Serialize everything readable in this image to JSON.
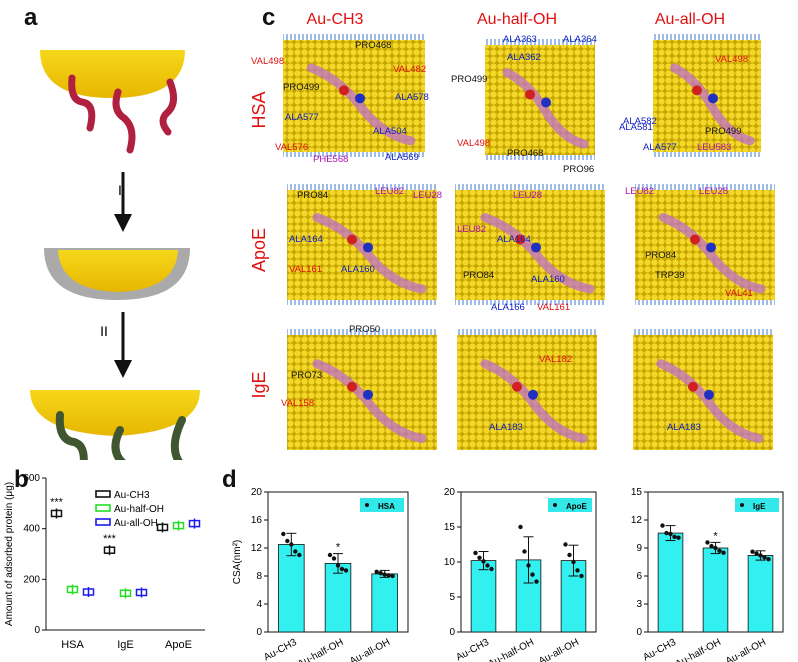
{
  "panels": {
    "a": "a",
    "b": "b",
    "c": "c",
    "d": "d"
  },
  "panel_a": {
    "step1": "I",
    "step2": "II"
  },
  "panel_c": {
    "columns": [
      "Au-CH3",
      "Au-half-OH",
      "Au-all-OH"
    ],
    "rows": [
      "HSA",
      "ApoE",
      "IgE"
    ],
    "residue_labels": [
      {
        "t": "VAL498",
        "c": "red"
      },
      {
        "t": "PRO499",
        "c": "black"
      },
      {
        "t": "PRO468",
        "c": "black"
      },
      {
        "t": "VAL482",
        "c": "red"
      },
      {
        "t": "ALA578",
        "c": "blue"
      },
      {
        "t": "ALA577",
        "c": "blue"
      },
      {
        "t": "ALA504",
        "c": "blue"
      },
      {
        "t": "VAL576",
        "c": "red"
      },
      {
        "t": "PHE568",
        "c": "purple"
      },
      {
        "t": "ALA569",
        "c": "blue"
      },
      {
        "t": "ALA363",
        "c": "blue"
      },
      {
        "t": "ALA364",
        "c": "blue"
      },
      {
        "t": "ALA362",
        "c": "blue"
      },
      {
        "t": "PRO499",
        "c": "black"
      },
      {
        "t": "VAL498",
        "c": "red"
      },
      {
        "t": "PRO468",
        "c": "black"
      },
      {
        "t": "PRO96",
        "c": "black"
      },
      {
        "t": "VAL498",
        "c": "red"
      },
      {
        "t": "ALA582",
        "c": "blue"
      },
      {
        "t": "ALA581",
        "c": "blue"
      },
      {
        "t": "ALA577",
        "c": "blue"
      },
      {
        "t": "PRO499",
        "c": "black"
      },
      {
        "t": "LEU583",
        "c": "purple"
      },
      {
        "t": "PRO84",
        "c": "black"
      },
      {
        "t": "LEU82",
        "c": "purple"
      },
      {
        "t": "LEU28",
        "c": "purple"
      },
      {
        "t": "ALA164",
        "c": "blue"
      },
      {
        "t": "VAL161",
        "c": "red"
      },
      {
        "t": "ALA160",
        "c": "blue"
      },
      {
        "t": "LEU28",
        "c": "purple"
      },
      {
        "t": "LEU82",
        "c": "purple"
      },
      {
        "t": "ALA164",
        "c": "blue"
      },
      {
        "t": "PRO84",
        "c": "black"
      },
      {
        "t": "ALA160",
        "c": "blue"
      },
      {
        "t": "ALA166",
        "c": "blue"
      },
      {
        "t": "VAL161",
        "c": "red"
      },
      {
        "t": "LEU82",
        "c": "purple"
      },
      {
        "t": "LEU28",
        "c": "purple"
      },
      {
        "t": "PRO84",
        "c": "black"
      },
      {
        "t": "TRP39",
        "c": "black"
      },
      {
        "t": "VAL41",
        "c": "red"
      },
      {
        "t": "PRO50",
        "c": "black"
      },
      {
        "t": "PRO73",
        "c": "black"
      },
      {
        "t": "VAL158",
        "c": "red"
      },
      {
        "t": "VAL182",
        "c": "red"
      },
      {
        "t": "ALA183",
        "c": "blue"
      },
      {
        "t": "ALA183",
        "c": "blue"
      }
    ]
  },
  "chart_data": [
    {
      "type": "scatter",
      "title": "",
      "xlabel": "",
      "ylabel": "Amount of adsorbed protein (μg)",
      "categories": [
        "HSA",
        "IgE",
        "ApoE"
      ],
      "ylim": [
        0,
        600
      ],
      "yticks": [
        0,
        200,
        400,
        600
      ],
      "legend": "top-right",
      "series": [
        {
          "name": "Au-CH3",
          "color": "#111111",
          "values": [
            460,
            315,
            405
          ]
        },
        {
          "name": "Au-half-OH",
          "color": "#22dd22",
          "values": [
            160,
            145,
            412
          ]
        },
        {
          "name": "Au-all-OH",
          "color": "#1a1aee",
          "values": [
            150,
            148,
            420
          ]
        }
      ],
      "significance": [
        {
          "category": "HSA",
          "label": "***"
        },
        {
          "category": "IgE",
          "label": "***"
        }
      ]
    },
    {
      "type": "bar",
      "legend_label": "HSA",
      "ylabel": "CSA(nm²)",
      "categories": [
        "Au-CH3",
        "Au-half-OH",
        "Au-all-OH"
      ],
      "values": [
        12.5,
        9.8,
        8.3
      ],
      "errors": [
        1.6,
        1.4,
        0.5
      ],
      "ylim": [
        0,
        20
      ],
      "yticks": [
        0,
        4,
        8,
        12,
        16,
        20
      ],
      "points": [
        [
          14,
          13,
          12.5,
          11.5,
          11
        ],
        [
          11,
          10.5,
          9.5,
          9,
          8.8
        ],
        [
          8.6,
          8.4,
          8.2,
          8.1,
          8.0
        ]
      ],
      "significance": [
        {
          "category": "Au-half-OH",
          "label": "*"
        }
      ]
    },
    {
      "type": "bar",
      "legend_label": "ApoE",
      "categories": [
        "Au-CH3",
        "Au-half-OH",
        "Au-all-OH"
      ],
      "values": [
        10.2,
        10.3,
        10.2
      ],
      "errors": [
        1.3,
        3.3,
        2.2
      ],
      "ylim": [
        0,
        20
      ],
      "yticks": [
        0,
        5,
        10,
        15,
        20
      ],
      "points": [
        [
          11.3,
          10.6,
          10.1,
          9.5,
          9.0
        ],
        [
          15,
          11.5,
          9.5,
          8.2,
          7.2
        ],
        [
          12.5,
          11,
          10,
          8.8,
          8.0
        ]
      ],
      "significance": []
    },
    {
      "type": "bar",
      "legend_label": "IgE",
      "categories": [
        "Au-CH3",
        "Au-half-OH",
        "Au-all-OH"
      ],
      "values": [
        10.6,
        9.0,
        8.2
      ],
      "errors": [
        0.8,
        0.6,
        0.5
      ],
      "ylim": [
        0,
        15
      ],
      "yticks": [
        0,
        3,
        6,
        9,
        12,
        15
      ],
      "points": [
        [
          11.4,
          10.6,
          10.5,
          10.2,
          10.1
        ],
        [
          9.6,
          9.2,
          9.0,
          8.7,
          8.5
        ],
        [
          8.6,
          8.4,
          8.2,
          8.0,
          7.8
        ]
      ],
      "significance": [
        {
          "category": "Au-half-OH",
          "label": "*"
        }
      ]
    }
  ]
}
